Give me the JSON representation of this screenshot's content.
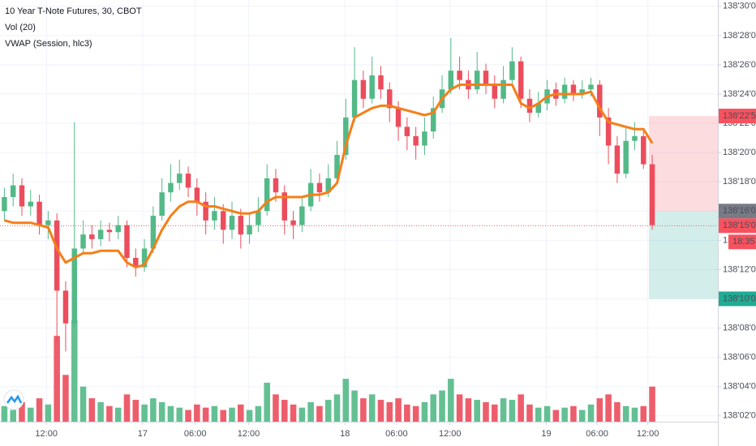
{
  "chart_data": {
    "type": "candlestick",
    "title": "10 Year T-Note Futures, 30, CBOT",
    "indicators": [
      "Vol (20)",
      "VWAP (Session, hlc3)"
    ],
    "up_color": "#53b987",
    "down_color": "#eb4d5c",
    "vwap_color": "#f57f17",
    "xlim": [
      -0.5,
      81.5
    ],
    "xticks": [
      {
        "value": 4.8,
        "label": "12:00"
      },
      {
        "value": 15.8,
        "label": "17"
      },
      {
        "value": 21.8,
        "label": "06:00"
      },
      {
        "value": 27.9,
        "label": "12:00"
      },
      {
        "value": 38.9,
        "label": "18"
      },
      {
        "value": 44.8,
        "label": "06:00"
      },
      {
        "value": 50.9,
        "label": "12:00"
      },
      {
        "value": 61.9,
        "label": "19"
      },
      {
        "value": 67.7,
        "label": "06:00"
      },
      {
        "value": 73.5,
        "label": "12:00"
      }
    ],
    "ylim": [
      138.05,
      138.951
    ],
    "yticks": [
      {
        "value": 138.0625,
        "label": "138'02'0"
      },
      {
        "value": 138.125,
        "label": "138'04'0"
      },
      {
        "value": 138.1875,
        "label": "138'06'0"
      },
      {
        "value": 138.25,
        "label": "138'08'0"
      },
      {
        "value": 138.3125,
        "label": "138'10'0"
      },
      {
        "value": 138.375,
        "label": "138'12'0"
      },
      {
        "value": 138.4375,
        "label": "138'14'0"
      },
      {
        "value": 138.5,
        "label": "138'16'0"
      },
      {
        "value": 138.5625,
        "label": "138'18'0"
      },
      {
        "value": 138.625,
        "label": "138'20'0"
      },
      {
        "value": 138.6875,
        "label": "138'22'0"
      },
      {
        "value": 138.75,
        "label": "138'24'0"
      },
      {
        "value": 138.8125,
        "label": "138'26'0"
      },
      {
        "value": 138.875,
        "label": "138'28'0"
      },
      {
        "value": 138.9375,
        "label": "138'30'0"
      }
    ],
    "grid": true,
    "open": [
      138.5,
      138.53,
      138.555,
      138.51,
      138.52,
      138.47,
      138.48,
      138.33,
      138.26,
      138.42,
      138.45,
      138.44,
      138.46,
      138.455,
      138.47,
      138.4,
      138.38,
      138.42,
      138.49,
      138.54,
      138.56,
      138.58,
      138.55,
      138.52,
      138.48,
      138.5,
      138.46,
      138.49,
      138.45,
      138.47,
      138.5,
      138.57,
      138.54,
      138.48,
      138.47,
      138.51,
      138.56,
      138.54,
      138.57,
      138.62,
      138.7,
      138.78,
      138.74,
      138.79,
      138.76,
      138.72,
      138.68,
      138.66,
      138.64,
      138.67,
      138.72,
      138.76,
      138.8,
      138.78,
      138.76,
      138.8,
      138.77,
      138.74,
      138.78,
      138.82,
      138.74,
      138.71,
      138.73,
      138.76,
      138.74,
      138.77,
      138.75,
      138.76,
      138.77,
      138.7,
      138.64,
      138.58,
      138.65,
      138.66,
      138.6
    ],
    "high": [
      138.55,
      138.58,
      138.57,
      138.545,
      138.535,
      138.5,
      138.495,
      138.35,
      138.69,
      138.48,
      138.47,
      138.48,
      138.475,
      138.49,
      138.48,
      138.42,
      138.44,
      138.51,
      138.57,
      138.6,
      138.61,
      138.595,
      138.57,
      138.54,
      138.53,
      138.515,
      138.52,
      138.505,
      138.495,
      138.53,
      138.6,
      138.59,
      138.555,
      138.5,
      138.53,
      138.59,
      138.58,
      138.6,
      138.65,
      138.74,
      138.85,
      138.8,
      138.83,
      138.81,
      138.775,
      138.735,
      138.7,
      138.68,
      138.7,
      138.745,
      138.79,
      138.87,
      138.83,
      138.8,
      138.84,
      138.815,
      138.79,
      138.81,
      138.85,
      138.83,
      138.76,
      138.755,
      138.78,
      138.775,
      138.785,
      138.78,
      138.78,
      138.785,
      138.78,
      138.72,
      138.66,
      138.68,
      138.69,
      138.675,
      138.62
    ],
    "low": [
      138.48,
      138.51,
      138.49,
      138.49,
      138.45,
      138.44,
      138.22,
      138.2,
      138.25,
      138.41,
      138.42,
      138.425,
      138.435,
      138.44,
      138.38,
      138.36,
      138.37,
      138.41,
      138.48,
      138.52,
      138.545,
      138.53,
      138.49,
      138.45,
      138.46,
      138.43,
      138.44,
      138.42,
      138.43,
      138.455,
      138.49,
      138.52,
      138.45,
      138.44,
      138.455,
      138.5,
      138.52,
      138.53,
      138.56,
      138.61,
      138.69,
      138.72,
      138.73,
      138.74,
      138.69,
      138.65,
      138.63,
      138.61,
      138.62,
      138.655,
      138.71,
      138.75,
      138.76,
      138.74,
      138.75,
      138.75,
      138.72,
      138.73,
      138.77,
      138.72,
      138.69,
      138.7,
      138.715,
      138.725,
      138.73,
      138.735,
      138.74,
      138.745,
      138.66,
      138.6,
      138.56,
      138.57,
      138.63,
      138.59,
      138.46
    ],
    "close": [
      138.53,
      138.555,
      138.51,
      138.52,
      138.47,
      138.48,
      138.33,
      138.26,
      138.42,
      138.45,
      138.44,
      138.46,
      138.455,
      138.47,
      138.4,
      138.38,
      138.42,
      138.49,
      138.54,
      138.56,
      138.58,
      138.55,
      138.52,
      138.48,
      138.5,
      138.46,
      138.49,
      138.45,
      138.47,
      138.5,
      138.57,
      138.54,
      138.48,
      138.47,
      138.51,
      138.56,
      138.54,
      138.57,
      138.62,
      138.7,
      138.78,
      138.74,
      138.79,
      138.76,
      138.72,
      138.68,
      138.66,
      138.64,
      138.67,
      138.72,
      138.76,
      138.8,
      138.78,
      138.76,
      138.8,
      138.77,
      138.74,
      138.78,
      138.82,
      138.74,
      138.71,
      138.73,
      138.76,
      138.74,
      138.77,
      138.75,
      138.76,
      138.77,
      138.7,
      138.64,
      138.58,
      138.65,
      138.66,
      138.6,
      138.47
    ],
    "volume": [
      20,
      15,
      25,
      18,
      30,
      22,
      110,
      60,
      130,
      45,
      30,
      25,
      20,
      18,
      35,
      28,
      22,
      30,
      25,
      20,
      18,
      15,
      22,
      18,
      20,
      15,
      18,
      22,
      15,
      20,
      50,
      35,
      28,
      22,
      18,
      25,
      20,
      28,
      35,
      55,
      40,
      30,
      35,
      28,
      25,
      30,
      22,
      20,
      25,
      35,
      40,
      55,
      35,
      30,
      28,
      25,
      22,
      30,
      28,
      35,
      22,
      18,
      20,
      15,
      18,
      20,
      15,
      22,
      30,
      35,
      25,
      20,
      18,
      20,
      45
    ],
    "vwap": [
      138.48,
      138.475,
      138.475,
      138.475,
      138.47,
      138.465,
      138.42,
      138.39,
      138.4,
      138.41,
      138.41,
      138.415,
      138.415,
      138.415,
      138.39,
      138.38,
      138.385,
      138.42,
      138.46,
      138.49,
      138.51,
      138.52,
      138.52,
      138.51,
      138.51,
      138.505,
      138.5,
      138.495,
      138.495,
      138.5,
      138.52,
      138.53,
      138.53,
      138.53,
      138.53,
      138.535,
      138.535,
      138.54,
      138.56,
      138.64,
      138.7,
      138.71,
      138.72,
      138.725,
      138.725,
      138.72,
      138.715,
      138.71,
      138.705,
      138.71,
      138.74,
      138.76,
      138.77,
      138.77,
      138.77,
      138.77,
      138.77,
      138.77,
      138.77,
      138.73,
      138.72,
      138.73,
      138.745,
      138.75,
      138.75,
      138.75,
      138.75,
      138.755,
      138.72,
      138.69,
      138.685,
      138.68,
      138.675,
      138.675,
      138.645
    ],
    "price_labels": [
      {
        "value": 138.703125,
        "label": "138'22'5",
        "color": "#f7525f"
      },
      {
        "value": 138.5,
        "label": "138'16'0",
        "color": "#787b86"
      },
      {
        "value": 138.46875,
        "label": "138'15'0",
        "color": "#f7525f"
      },
      {
        "value": 138.3125,
        "label": "138'10'0",
        "color": "#22ab94"
      }
    ],
    "countdown": "18:35"
  }
}
